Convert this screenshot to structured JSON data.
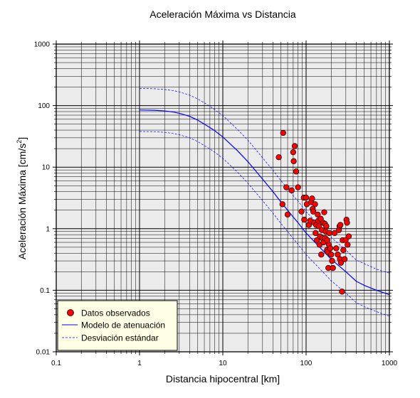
{
  "chart_data": {
    "type": "scatter",
    "title": "Aceleración Máxima vs Distancia",
    "xlabel": "Distancia hipocentral [km]",
    "ylabel_main": "Aceleración Máxima [cm/s",
    "ylabel_sup": "2",
    "ylabel_end": "]",
    "xscale": "log",
    "yscale": "log",
    "xlim": [
      0.1,
      1000
    ],
    "ylim": [
      0.01,
      1000
    ],
    "x_ticks": [
      0.1,
      1,
      10,
      100,
      1000
    ],
    "x_tick_labels": [
      "0.1",
      "1",
      "10",
      "100",
      "1000"
    ],
    "y_ticks": [
      0.01,
      0.1,
      1,
      10,
      100,
      1000
    ],
    "y_tick_labels": [
      "0.01",
      "0.1",
      "1",
      "10",
      "100",
      "1000"
    ],
    "grid": true,
    "legend_position": "bottom-left",
    "legend": [
      {
        "label": "Datos observados",
        "kind": "marker"
      },
      {
        "label": "Modelo de atenuación",
        "kind": "solid"
      },
      {
        "label": "Desviación estándar",
        "kind": "dashed"
      }
    ],
    "colors": {
      "background": "#ebebeb",
      "grid": "#000000",
      "points": "#ff0000",
      "model": "#0000ff",
      "deviation": "#0000ff",
      "legend_bg": "#ffffe6"
    },
    "series": [
      {
        "name": "Datos observados",
        "kind": "scatter",
        "points": [
          [
            47,
            14.5
          ],
          [
            53,
            36
          ],
          [
            58,
            4.7
          ],
          [
            60,
            1.7
          ],
          [
            52,
            2.5
          ],
          [
            67,
            4.2
          ],
          [
            70,
            17.5
          ],
          [
            71,
            12.5
          ],
          [
            73,
            22
          ],
          [
            76,
            8.5
          ],
          [
            80,
            4.7
          ],
          [
            88,
            1.9
          ],
          [
            94,
            3.2
          ],
          [
            95,
            1.4
          ],
          [
            100,
            3.2
          ],
          [
            102,
            2.5
          ],
          [
            108,
            1.15
          ],
          [
            112,
            1.35
          ],
          [
            115,
            2.7
          ],
          [
            118,
            3.1
          ],
          [
            120,
            2.1
          ],
          [
            122,
            1.9
          ],
          [
            125,
            1.25
          ],
          [
            128,
            2.5
          ],
          [
            130,
            0.85
          ],
          [
            132,
            1.15
          ],
          [
            135,
            0.65
          ],
          [
            138,
            1.7
          ],
          [
            140,
            1.35
          ],
          [
            142,
            1.1
          ],
          [
            145,
            0.55
          ],
          [
            147,
            0.75
          ],
          [
            150,
            1.45
          ],
          [
            152,
            0.38
          ],
          [
            155,
            0.95
          ],
          [
            157,
            0.7
          ],
          [
            160,
            1.25
          ],
          [
            162,
            0.6
          ],
          [
            165,
            1.85
          ],
          [
            168,
            1.2
          ],
          [
            170,
            0.7
          ],
          [
            172,
            0.9
          ],
          [
            175,
            1.1
          ],
          [
            178,
            0.45
          ],
          [
            180,
            0.65
          ],
          [
            182,
            0.42
          ],
          [
            185,
            0.23
          ],
          [
            188,
            0.55
          ],
          [
            190,
            0.85
          ],
          [
            195,
            0.48
          ],
          [
            200,
            0.38
          ],
          [
            205,
            0.3
          ],
          [
            210,
            0.23
          ],
          [
            220,
            0.85
          ],
          [
            230,
            0.48
          ],
          [
            240,
            0.38
          ],
          [
            248,
            0.95
          ],
          [
            252,
            1.1
          ],
          [
            255,
            0.32
          ],
          [
            258,
            1.15
          ],
          [
            262,
            0.28
          ],
          [
            270,
            0.095
          ],
          [
            275,
            0.65
          ],
          [
            280,
            0.45
          ],
          [
            290,
            0.32
          ],
          [
            298,
            0.65
          ],
          [
            305,
            1.4
          ],
          [
            315,
            0.55
          ],
          [
            325,
            0.75
          ],
          [
            310,
            1.25
          ]
        ]
      },
      {
        "name": "Modelo de atenuación",
        "kind": "line",
        "points": [
          [
            1,
            85
          ],
          [
            1.5,
            84
          ],
          [
            2,
            82
          ],
          [
            2.5,
            79
          ],
          [
            3,
            75
          ],
          [
            4,
            67
          ],
          [
            5,
            58
          ],
          [
            6,
            50
          ],
          [
            7,
            44
          ],
          [
            8,
            39
          ],
          [
            10,
            31
          ],
          [
            15,
            18.5
          ],
          [
            20,
            12.3
          ],
          [
            30,
            6.4
          ],
          [
            40,
            4.0
          ],
          [
            50,
            2.7
          ],
          [
            60,
            2.0
          ],
          [
            70,
            1.55
          ],
          [
            80,
            1.25
          ],
          [
            100,
            0.85
          ],
          [
            150,
            0.48
          ],
          [
            200,
            0.32
          ],
          [
            300,
            0.2
          ],
          [
            400,
            0.14
          ],
          [
            500,
            0.12
          ],
          [
            700,
            0.1
          ],
          [
            1000,
            0.085
          ]
        ]
      },
      {
        "name": "Desviación estándar (superior)",
        "kind": "dashed",
        "points": [
          [
            1,
            190
          ],
          [
            1.5,
            188
          ],
          [
            2,
            183
          ],
          [
            2.5,
            176
          ],
          [
            3,
            167
          ],
          [
            4,
            148
          ],
          [
            5,
            128
          ],
          [
            6,
            111
          ],
          [
            7,
            98
          ],
          [
            8,
            86
          ],
          [
            10,
            69
          ],
          [
            15,
            41
          ],
          [
            20,
            27.5
          ],
          [
            30,
            14.2
          ],
          [
            40,
            8.9
          ],
          [
            50,
            6.0
          ],
          [
            60,
            4.5
          ],
          [
            70,
            3.45
          ],
          [
            80,
            2.8
          ],
          [
            100,
            1.9
          ],
          [
            150,
            1.07
          ],
          [
            200,
            0.72
          ],
          [
            300,
            0.45
          ],
          [
            400,
            0.31
          ],
          [
            500,
            0.27
          ],
          [
            700,
            0.22
          ],
          [
            1000,
            0.19
          ]
        ]
      },
      {
        "name": "Desviación estándar (inferior)",
        "kind": "dashed",
        "points": [
          [
            1,
            38
          ],
          [
            1.5,
            37.7
          ],
          [
            2,
            36.8
          ],
          [
            2.5,
            35.4
          ],
          [
            3,
            33.6
          ],
          [
            4,
            30
          ],
          [
            5,
            26
          ],
          [
            6,
            22.4
          ],
          [
            7,
            19.7
          ],
          [
            8,
            17.5
          ],
          [
            10,
            13.9
          ],
          [
            15,
            8.3
          ],
          [
            20,
            5.5
          ],
          [
            30,
            2.87
          ],
          [
            40,
            1.79
          ],
          [
            50,
            1.21
          ],
          [
            60,
            0.9
          ],
          [
            70,
            0.69
          ],
          [
            80,
            0.56
          ],
          [
            100,
            0.38
          ],
          [
            150,
            0.215
          ],
          [
            200,
            0.143
          ],
          [
            300,
            0.09
          ],
          [
            400,
            0.063
          ],
          [
            500,
            0.054
          ],
          [
            700,
            0.045
          ],
          [
            1000,
            0.038
          ]
        ]
      }
    ]
  }
}
